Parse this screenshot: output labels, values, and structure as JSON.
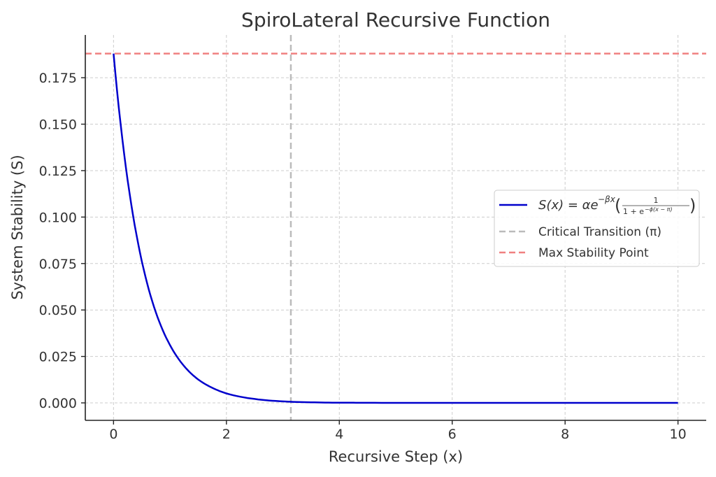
{
  "chart_data": {
    "type": "line",
    "title": "SpiroLateral Recursive Function",
    "xlabel": "Recursive Step (x)",
    "ylabel": "System Stability (S)",
    "xlim": [
      -0.5,
      10.5
    ],
    "ylim": [
      -0.0094,
      0.198
    ],
    "xticks": [
      0,
      2,
      4,
      6,
      8,
      10
    ],
    "xtick_labels": [
      "0",
      "2",
      "4",
      "6",
      "8",
      "10"
    ],
    "yticks": [
      0,
      0.025,
      0.05,
      0.075,
      0.1,
      0.125,
      0.15,
      0.175
    ],
    "ytick_labels": [
      "0.000",
      "0.025",
      "0.050",
      "0.075",
      "0.100",
      "0.125",
      "0.150",
      "0.175"
    ],
    "grid": true,
    "legend_position": "right",
    "series": [
      {
        "name": "S(x) = αe^{−βx}(1 / (1 + e^{−φ(x−π)}))",
        "color": "#0000cc",
        "style": "solid",
        "x": [
          0,
          0.25,
          0.5,
          0.75,
          1,
          1.25,
          1.5,
          1.75,
          2,
          2.5,
          3,
          3.5,
          4,
          5,
          6,
          7,
          8,
          9,
          10
        ],
        "y": [
          0.188,
          0.1199,
          0.0764,
          0.0487,
          0.0311,
          0.0198,
          0.0126,
          0.0081,
          0.0051,
          0.0021,
          0.0008,
          0.0003,
          0.0001,
          0,
          0,
          0,
          0,
          0,
          0
        ]
      }
    ],
    "reference_lines": [
      {
        "name": "Critical Transition (π)",
        "orientation": "vertical",
        "value": 3.1416,
        "color": "#bbbbbb",
        "style": "dashed"
      },
      {
        "name": "Max Stability Point",
        "orientation": "horizontal",
        "value": 0.188,
        "color": "#f08080",
        "style": "dashed"
      }
    ]
  }
}
